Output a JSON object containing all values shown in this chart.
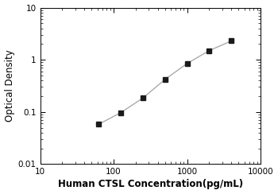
{
  "x": [
    62.5,
    125,
    250,
    500,
    1000,
    2000,
    4000
  ],
  "y": [
    0.058,
    0.097,
    0.185,
    0.42,
    0.85,
    1.5,
    2.3
  ],
  "line_color": "#aaaaaa",
  "marker_color": "#1a1a1a",
  "marker_style": "s",
  "marker_size": 4,
  "line_width": 1.0,
  "xlabel": "Human CTSL Concentration(pg/mL)",
  "ylabel": "Optical Density",
  "xlim": [
    10,
    10000
  ],
  "ylim": [
    0.01,
    10
  ],
  "xtick_labels": [
    "10",
    "100",
    "1000",
    "10000"
  ],
  "xtick_vals": [
    10,
    100,
    1000,
    10000
  ],
  "ytick_labels": [
    "0.01",
    "0.1",
    "1",
    "10"
  ],
  "ytick_vals": [
    0.01,
    0.1,
    1,
    10
  ],
  "xlabel_fontsize": 8.5,
  "ylabel_fontsize": 8.5,
  "tick_fontsize": 7.5,
  "background_color": "#ffffff",
  "fig_width": 3.5,
  "fig_height": 2.44,
  "dpi": 100
}
